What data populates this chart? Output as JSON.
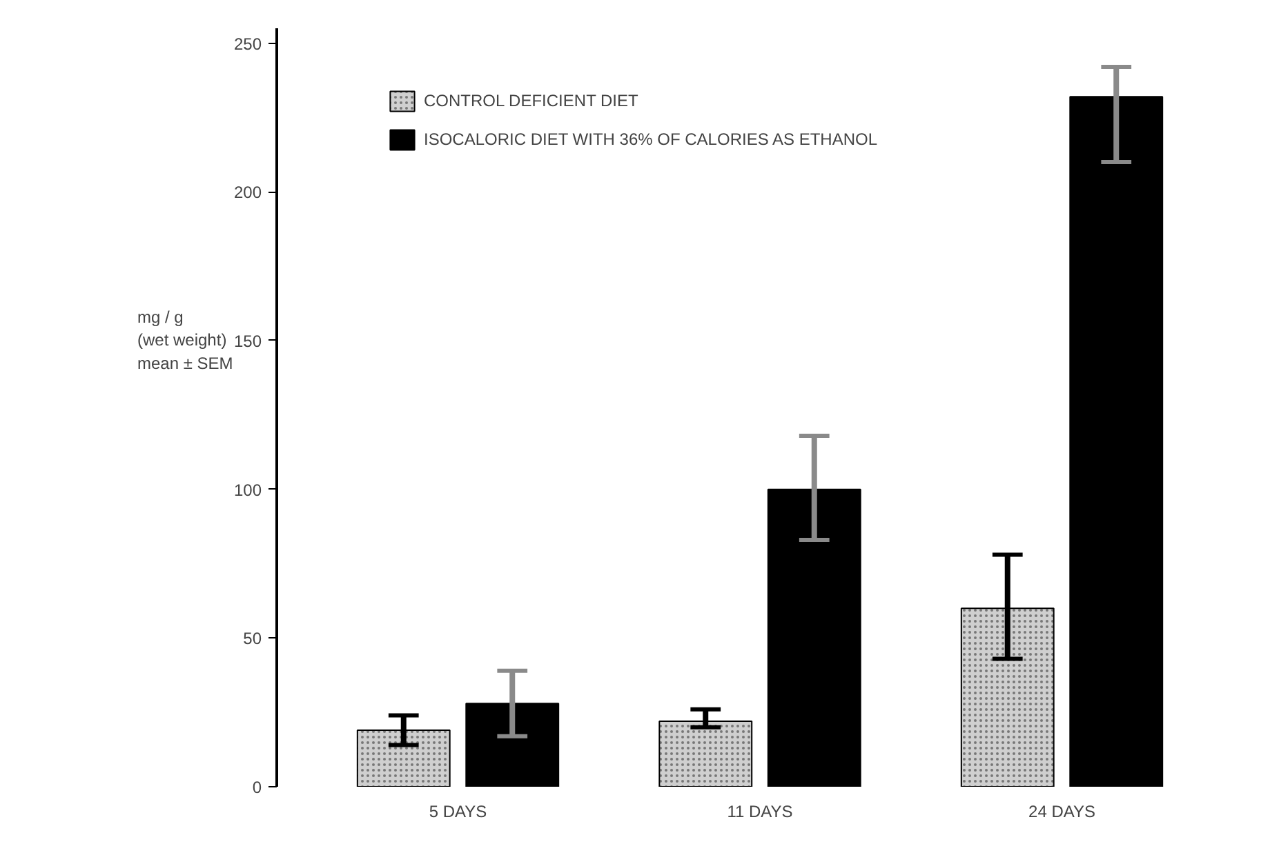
{
  "chart_data": {
    "type": "bar",
    "categories": [
      "5 DAYS",
      "11 DAYS",
      "24 DAYS"
    ],
    "ylabel": "mg / g\n(wet weight)\nmean ± SEM",
    "series": [
      {
        "name": "CONTROL DEFICIENT DIET",
        "color": "#cfcfcf",
        "values": [
          19,
          22,
          60
        ],
        "errors": [
          [
            14,
            24
          ],
          [
            20,
            26
          ],
          [
            43,
            78
          ]
        ]
      },
      {
        "name": "ISOCALORIC DIET WITH 36% OF CALORIES AS ETHANOL",
        "color": "#000000",
        "values": [
          28,
          100,
          232
        ],
        "errors": [
          [
            17,
            39
          ],
          [
            83,
            118
          ],
          [
            210,
            242
          ]
        ]
      }
    ],
    "ylim": [
      0,
      255
    ],
    "yticks": [
      0,
      50,
      100,
      150,
      200,
      250
    ],
    "grid": false,
    "legend": "top left"
  }
}
